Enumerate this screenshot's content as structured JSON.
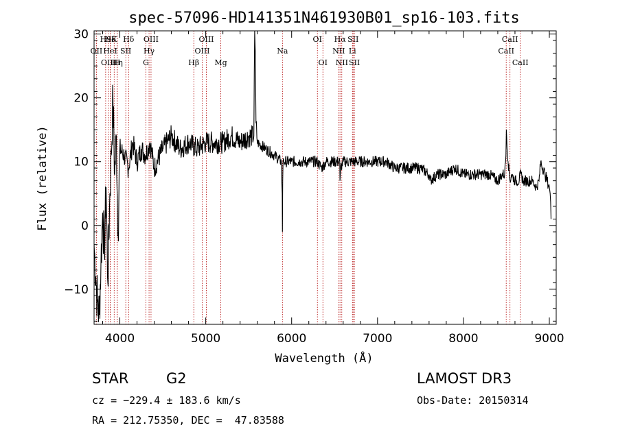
{
  "chart_data": {
    "type": "line",
    "title": "spec-57096-HD141351N461930B01_sp16-103.fits",
    "xlabel": "Wavelength (Å)",
    "ylabel": "Flux (relative)",
    "xlim": [
      3700,
      9080
    ],
    "ylim": [
      -15.5,
      30.5
    ],
    "xticks": [
      4000,
      5000,
      6000,
      7000,
      8000,
      9000
    ],
    "xtick_labels": [
      "4000",
      "5000",
      "6000",
      "7000",
      "8000",
      "9000"
    ],
    "yticks": [
      -10,
      0,
      10,
      20,
      30
    ],
    "ytick_labels": [
      "−10",
      "0",
      "10",
      "20",
      "30"
    ],
    "series": [
      {
        "name": "flux",
        "x": [
          3700,
          3720,
          3740,
          3760,
          3780,
          3800,
          3820,
          3840,
          3860,
          3880,
          3900,
          3920,
          3940,
          3960,
          3980,
          4000,
          4050,
          4100,
          4150,
          4200,
          4250,
          4300,
          4350,
          4400,
          4500,
          4600,
          4700,
          4800,
          4900,
          5000,
          5100,
          5200,
          5300,
          5400,
          5500,
          5560,
          5570,
          5577,
          5585,
          5600,
          5700,
          5800,
          5880,
          5890,
          5893,
          5896,
          5900,
          5910,
          6000,
          6100,
          6200,
          6300,
          6350,
          6400,
          6500,
          6560,
          6563,
          6570,
          6600,
          6700,
          6800,
          6900,
          7000,
          7100,
          7200,
          7300,
          7400,
          7500,
          7600,
          7610,
          7700,
          7800,
          7900,
          8000,
          8100,
          8200,
          8300,
          8400,
          8450,
          8480,
          8495,
          8500,
          8520,
          8542,
          8560,
          8600,
          8650,
          8662,
          8700,
          8750,
          8800,
          8850,
          8880,
          8900,
          8950,
          9000,
          9010,
          9020
        ],
        "y": [
          -3,
          -8,
          -12,
          -14,
          -6,
          2,
          -4,
          6,
          -9,
          3,
          11,
          20,
          8,
          14,
          -1,
          12,
          11,
          9,
          13,
          10,
          12,
          11,
          13,
          9,
          12,
          14,
          12,
          13,
          12,
          13,
          13,
          13,
          14,
          13,
          14,
          14,
          31,
          27,
          16,
          13,
          12,
          11,
          10,
          5,
          -1,
          7,
          10,
          10,
          10,
          10,
          10,
          10,
          9,
          10,
          10,
          10,
          7,
          9,
          10,
          10,
          10,
          10,
          10,
          10,
          9,
          9,
          9,
          9,
          8,
          7,
          8,
          8,
          9,
          8,
          8,
          8,
          8,
          7,
          8,
          8,
          11,
          15,
          10,
          7,
          8,
          7,
          7,
          8,
          7,
          7,
          7,
          6,
          7,
          10,
          8,
          6,
          5,
          1
        ]
      }
    ],
    "lines": [
      {
        "label": "H9",
        "x": 3835,
        "row": 1
      },
      {
        "label": "OII",
        "x": 3727,
        "row": 2
      },
      {
        "label": "OIII",
        "x": 3868,
        "row": 3
      },
      {
        "label": "Hδ",
        "x": 3889,
        "row": 1
      },
      {
        "label": "K",
        "x": 3934,
        "row": 1
      },
      {
        "label": "HeI",
        "x": 3889,
        "row": 2
      },
      {
        "label": "Hη",
        "x": 3970,
        "row": 3
      },
      {
        "label": "SII",
        "x": 4069,
        "row": 2
      },
      {
        "label": "H",
        "x": 3969,
        "row": 3
      },
      {
        "label": "Hδ",
        "x": 4102,
        "row": 1
      },
      {
        "label": "OIII",
        "x": 4363,
        "row": 1
      },
      {
        "label": "Hγ",
        "x": 4340,
        "row": 2
      },
      {
        "label": "G",
        "x": 4304,
        "row": 3
      },
      {
        "label": "OIII",
        "x": 5007,
        "row": 1
      },
      {
        "label": "OIII",
        "x": 4959,
        "row": 2
      },
      {
        "label": "Hβ",
        "x": 4861,
        "row": 3
      },
      {
        "label": "Mg",
        "x": 5175,
        "row": 3
      },
      {
        "label": "Na",
        "x": 5893,
        "row": 2
      },
      {
        "label": "OI",
        "x": 6300,
        "row": 1
      },
      {
        "label": "OI",
        "x": 6364,
        "row": 3
      },
      {
        "label": "Hα",
        "x": 6563,
        "row": 1
      },
      {
        "label": "SII",
        "x": 6716,
        "row": 1
      },
      {
        "label": "NII",
        "x": 6548,
        "row": 2
      },
      {
        "label": "Li",
        "x": 6708,
        "row": 2
      },
      {
        "label": "NII",
        "x": 6584,
        "row": 3
      },
      {
        "label": "SII",
        "x": 6731,
        "row": 3
      },
      {
        "label": "CaII",
        "x": 8542,
        "row": 1
      },
      {
        "label": "CaII",
        "x": 8498,
        "row": 2
      },
      {
        "label": "CaII",
        "x": 8662,
        "row": 3
      }
    ]
  },
  "info": {
    "class": "STAR",
    "subclass": "G2",
    "survey": "LAMOST DR3",
    "cz": "cz = −229.4 ± 183.6 km/s",
    "obs_date": "Obs-Date: 20150314",
    "radec": "RA = 212.75350, DEC =  47.83588"
  }
}
